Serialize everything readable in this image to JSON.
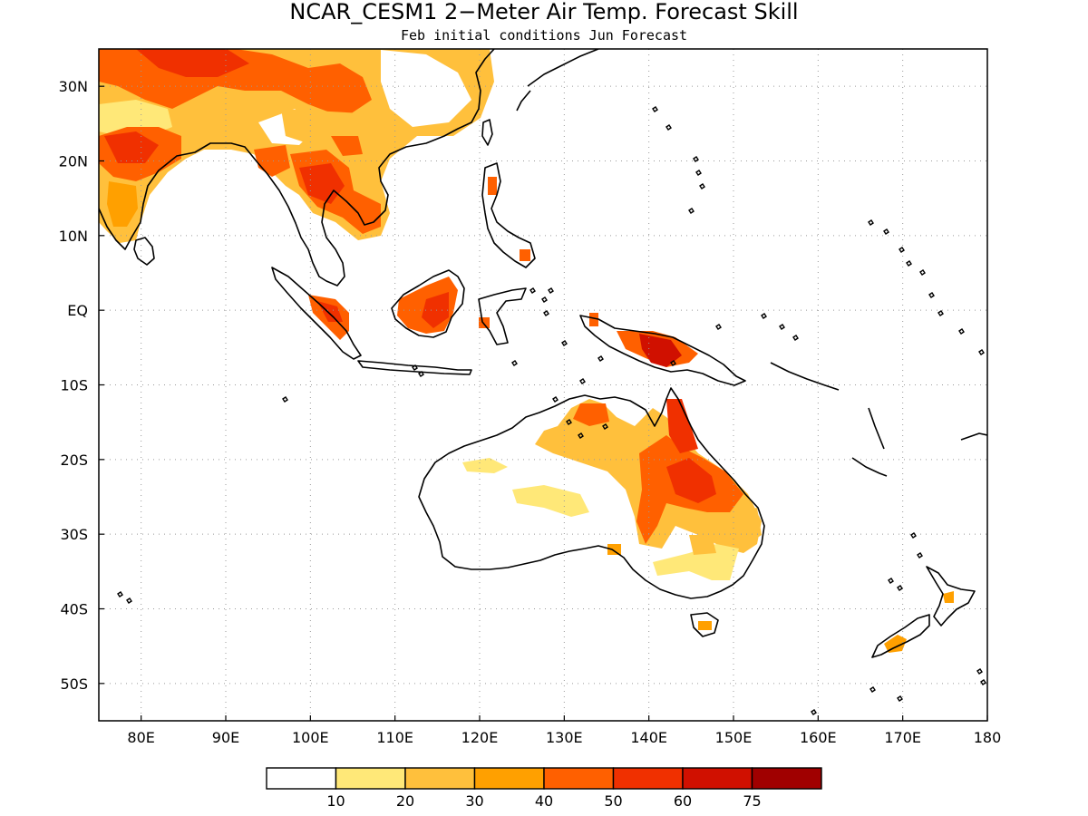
{
  "title": "NCAR_CESM1 2−Meter Air Temp. Forecast Skill",
  "subtitle": "Feb initial conditions  Jun Forecast",
  "map": {
    "lon_range": [
      75,
      180
    ],
    "lat_range": [
      -55,
      35
    ],
    "lon_ticks": [
      {
        "value": 80,
        "label": "80E"
      },
      {
        "value": 90,
        "label": "90E"
      },
      {
        "value": 100,
        "label": "100E"
      },
      {
        "value": 110,
        "label": "110E"
      },
      {
        "value": 120,
        "label": "120E"
      },
      {
        "value": 130,
        "label": "130E"
      },
      {
        "value": 140,
        "label": "140E"
      },
      {
        "value": 150,
        "label": "150E"
      },
      {
        "value": 160,
        "label": "160E"
      },
      {
        "value": 170,
        "label": "170E"
      },
      {
        "value": 180,
        "label": "180"
      }
    ],
    "lat_ticks": [
      {
        "value": 30,
        "label": "30N"
      },
      {
        "value": 20,
        "label": "20N"
      },
      {
        "value": 10,
        "label": "10N"
      },
      {
        "value": 0,
        "label": "EQ"
      },
      {
        "value": -10,
        "label": "10S"
      },
      {
        "value": -20,
        "label": "20S"
      },
      {
        "value": -30,
        "label": "30S"
      },
      {
        "value": -40,
        "label": "40S"
      },
      {
        "value": -50,
        "label": "50S"
      }
    ],
    "grid": "dotted"
  },
  "colorbar": {
    "colors": [
      "#ffffff",
      "#ffe878",
      "#ffc03c",
      "#ffa000",
      "#ff6000",
      "#f03000",
      "#d01000",
      "#a00000"
    ],
    "labels": [
      "10",
      "20",
      "30",
      "40",
      "50",
      "60",
      "75"
    ]
  }
}
